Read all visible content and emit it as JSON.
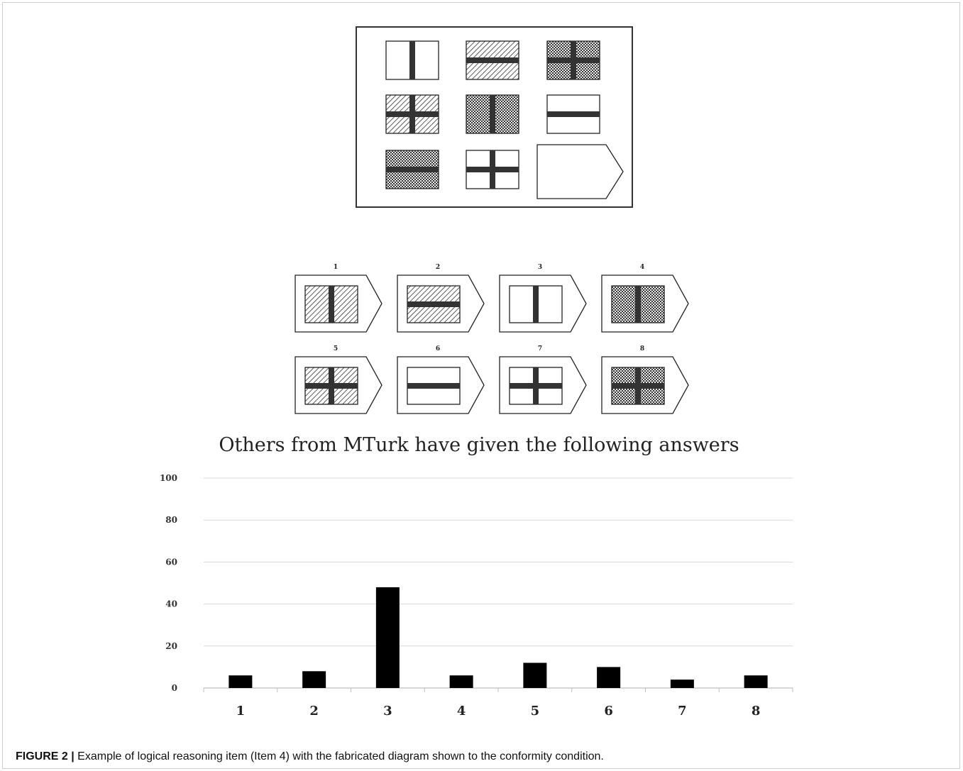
{
  "figure": {
    "caption_label": "FIGURE 2 |",
    "caption_text": "Example of logical reasoning item (Item 4) with the fabricated diagram shown to the conformity condition."
  },
  "matrix": {
    "cells": [
      {
        "fill": "plain",
        "bar": "vertical"
      },
      {
        "fill": "hatch",
        "bar": "horizontal"
      },
      {
        "fill": "check",
        "bar": "cross"
      },
      {
        "fill": "hatch",
        "bar": "cross"
      },
      {
        "fill": "check",
        "bar": "vertical"
      },
      {
        "fill": "plain",
        "bar": "horizontal"
      },
      {
        "fill": "check",
        "bar": "horizontal"
      },
      {
        "fill": "plain",
        "bar": "cross"
      },
      {
        "fill": "missing",
        "bar": "none"
      }
    ]
  },
  "options": [
    {
      "number": "1",
      "fill": "hatch",
      "bar": "vertical"
    },
    {
      "number": "2",
      "fill": "hatch",
      "bar": "horizontal"
    },
    {
      "number": "3",
      "fill": "plain",
      "bar": "vertical"
    },
    {
      "number": "4",
      "fill": "check",
      "bar": "vertical"
    },
    {
      "number": "5",
      "fill": "hatch",
      "bar": "cross"
    },
    {
      "number": "6",
      "fill": "plain",
      "bar": "horizontal"
    },
    {
      "number": "7",
      "fill": "plain",
      "bar": "cross"
    },
    {
      "number": "8",
      "fill": "check",
      "bar": "cross"
    }
  ],
  "chart_data": {
    "type": "bar",
    "title": "Others from MTurk have given the following answers",
    "categories": [
      "1",
      "2",
      "3",
      "4",
      "5",
      "6",
      "7",
      "8"
    ],
    "values": [
      6,
      8,
      48,
      6,
      12,
      10,
      4,
      6
    ],
    "ylim": [
      0,
      100
    ],
    "yticks": [
      "0",
      "20",
      "40",
      "60",
      "80",
      "100"
    ],
    "xlabel": "",
    "ylabel": "",
    "grid": true,
    "bar_color": "#000000"
  }
}
